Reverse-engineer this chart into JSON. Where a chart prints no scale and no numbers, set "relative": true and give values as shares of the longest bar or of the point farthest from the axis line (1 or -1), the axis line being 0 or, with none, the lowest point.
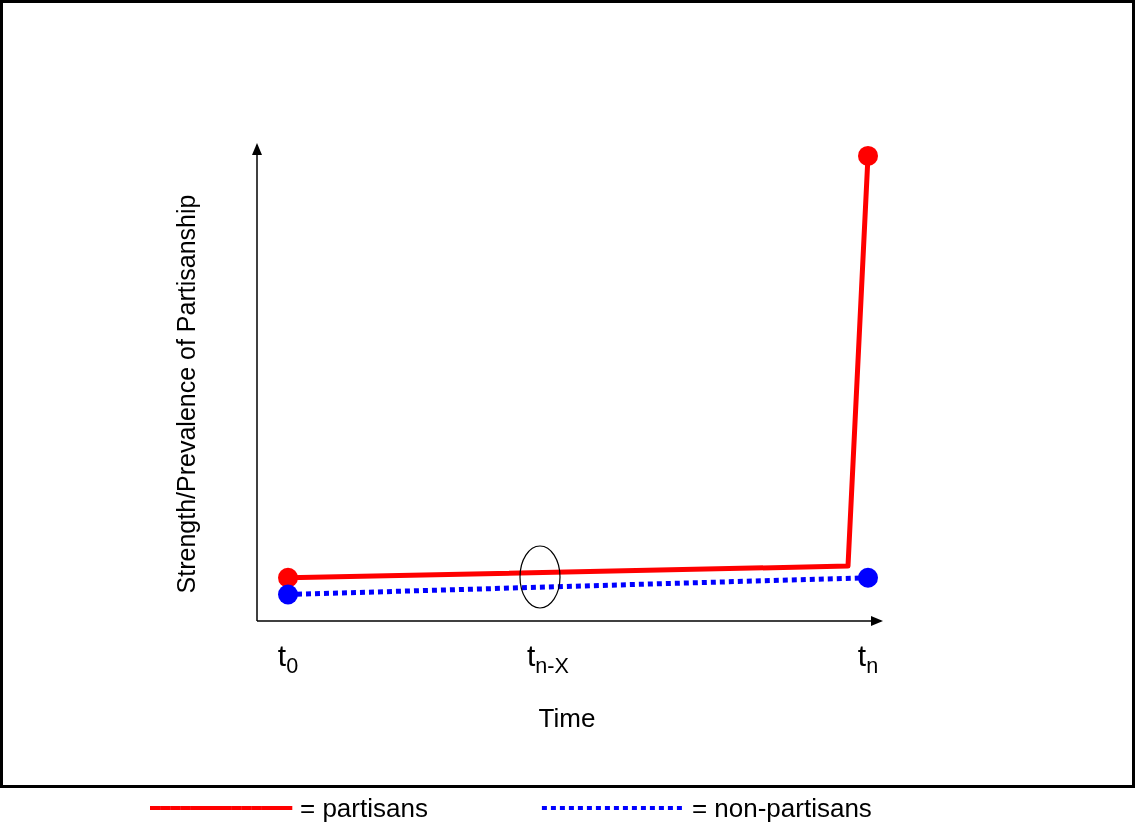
{
  "chart_data": {
    "type": "line",
    "relative": true,
    "xlabel": "Time",
    "ylabel": "Strength/Prevalence of Partisanship",
    "categories": [
      "t$_{0}$",
      null,
      null,
      null,
      null,
      null,
      null,
      null,
      null,
      null,
      null,
      null,
      null,
      "t$_{n-X}$",
      null,
      null,
      null,
      null,
      null,
      null,
      null,
      null,
      null,
      null,
      null,
      null,
      null,
      null,
      null,
      "t$_{n}$"
    ],
    "legend": "bottom",
    "series": [
      {
        "name": "= partisans",
        "color": "#ff0000",
        "values": [
          0.093,
          null,
          null,
          null,
          null,
          null,
          null,
          null,
          null,
          null,
          null,
          null,
          null,
          null,
          null,
          null,
          null,
          null,
          null,
          null,
          null,
          null,
          null,
          null,
          null,
          null,
          null,
          null,
          0.118,
          1
        ],
        "line_style": "solid",
        "marker": "none"
      },
      {
        "type": "scatter",
        "color": "#ff0000",
        "values": [
          0.093,
          null,
          null,
          null,
          null,
          null,
          null,
          null,
          null,
          null,
          null,
          null,
          null,
          null,
          null,
          null,
          null,
          null,
          null,
          null,
          null,
          null,
          null,
          null,
          null,
          null,
          null,
          null,
          null,
          1
        ],
        "marker": "circle"
      },
      {
        "name": "= non-partisans",
        "color": "#0000ff",
        "values": [
          0.057,
          null,
          null,
          null,
          null,
          null,
          null,
          null,
          null,
          null,
          null,
          null,
          null,
          null,
          null,
          null,
          null,
          null,
          null,
          null,
          null,
          null,
          null,
          null,
          null,
          null,
          null,
          null,
          null,
          0.093
        ],
        "line_style": "dotted",
        "marker": "circle"
      }
    ]
  }
}
